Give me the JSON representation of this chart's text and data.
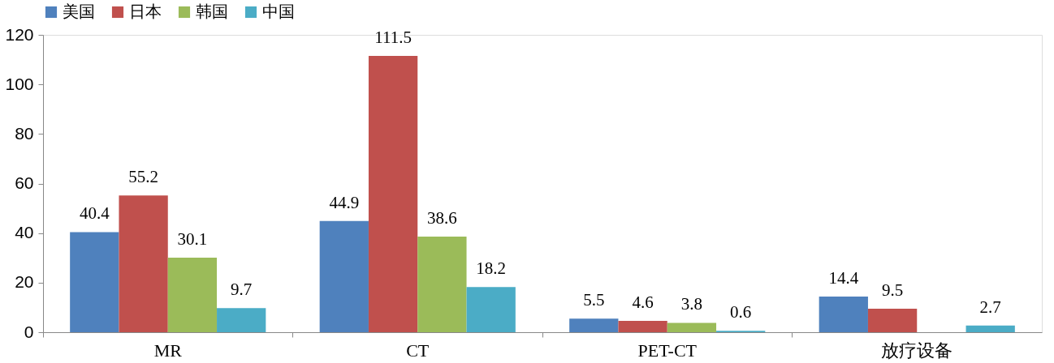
{
  "chart_data": {
    "type": "bar",
    "categories": [
      "MR",
      "CT",
      "PET-CT",
      "放疗设备"
    ],
    "series": [
      {
        "name": "美国",
        "color": "#4f81bd",
        "values": [
          40.4,
          44.9,
          5.5,
          14.4
        ]
      },
      {
        "name": "日本",
        "color": "#c0504d",
        "values": [
          55.2,
          111.5,
          4.6,
          9.5
        ]
      },
      {
        "name": "韩国",
        "color": "#9bbb59",
        "values": [
          30.1,
          38.6,
          3.8,
          null
        ]
      },
      {
        "name": "中国",
        "color": "#4bacc6",
        "values": [
          9.7,
          18.2,
          0.6,
          2.7
        ]
      }
    ],
    "ylim": [
      0,
      120
    ],
    "yticks": [
      0,
      20,
      40,
      60,
      80,
      100,
      120
    ],
    "grid": false,
    "legend": "top",
    "data_labels": true
  }
}
